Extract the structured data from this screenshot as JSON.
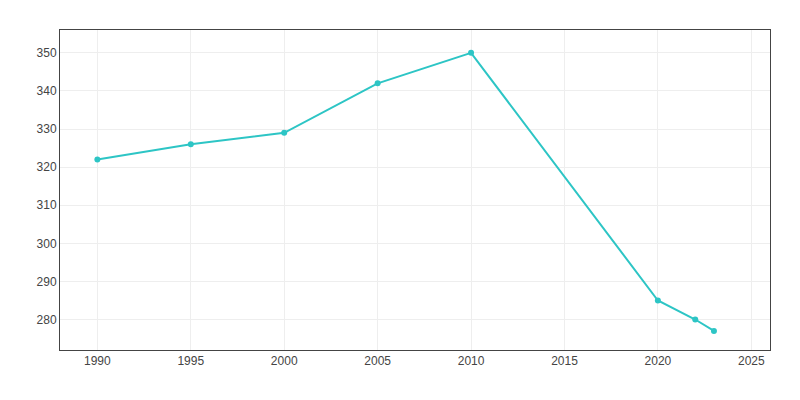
{
  "chart_data": {
    "type": "line",
    "x": [
      1990,
      1995,
      2000,
      2005,
      2010,
      2020,
      2022,
      2023
    ],
    "values": [
      322,
      326,
      329,
      342,
      350,
      285,
      280,
      277
    ],
    "color": "#2DC5C5",
    "marker": "circle",
    "xlim": [
      1988,
      2026
    ],
    "ylim": [
      272,
      356
    ],
    "xticks": [
      1990,
      1995,
      2000,
      2005,
      2010,
      2015,
      2020,
      2025
    ],
    "yticks": [
      280,
      290,
      300,
      310,
      320,
      330,
      340,
      350
    ],
    "grid": true
  }
}
